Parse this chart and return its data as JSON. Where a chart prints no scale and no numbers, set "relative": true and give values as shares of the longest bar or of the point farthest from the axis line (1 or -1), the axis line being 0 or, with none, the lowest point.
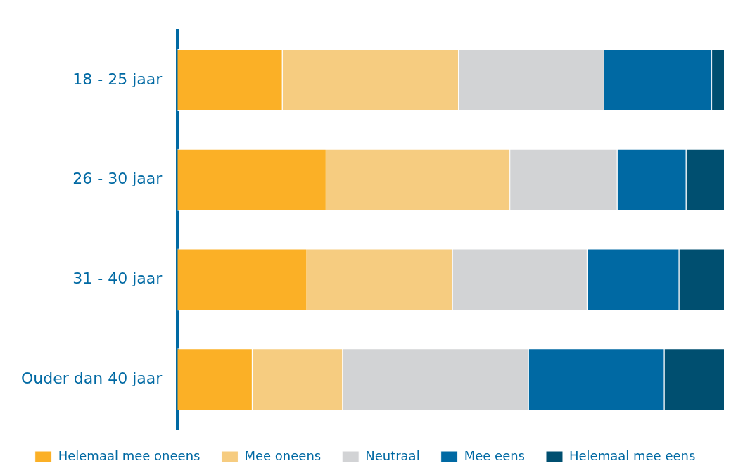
{
  "chart_data": {
    "type": "bar",
    "orientation": "horizontal",
    "stacked": true,
    "relative": true,
    "legend": "bottom",
    "categories": [
      "18 - 25 jaar",
      "26 - 30 jaar",
      "31 - 40 jaar",
      "Ouder dan 40 jaar"
    ],
    "series": [
      {
        "name": "Helemaal mee oneens",
        "color": "#fbb026",
        "values": [
          0.192,
          0.272,
          0.237,
          0.137
        ]
      },
      {
        "name": "Mee oneens",
        "color": "#f6cc80",
        "values": [
          0.322,
          0.336,
          0.266,
          0.165
        ]
      },
      {
        "name": "Neutraal",
        "color": "#d2d3d5",
        "values": [
          0.266,
          0.196,
          0.246,
          0.34
        ]
      },
      {
        "name": "Mee eens",
        "color": "#0069a3",
        "values": [
          0.197,
          0.126,
          0.168,
          0.248
        ]
      },
      {
        "name": "Helemaal mee eens",
        "color": "#004f70",
        "values": [
          0.023,
          0.07,
          0.083,
          0.11
        ]
      }
    ]
  }
}
